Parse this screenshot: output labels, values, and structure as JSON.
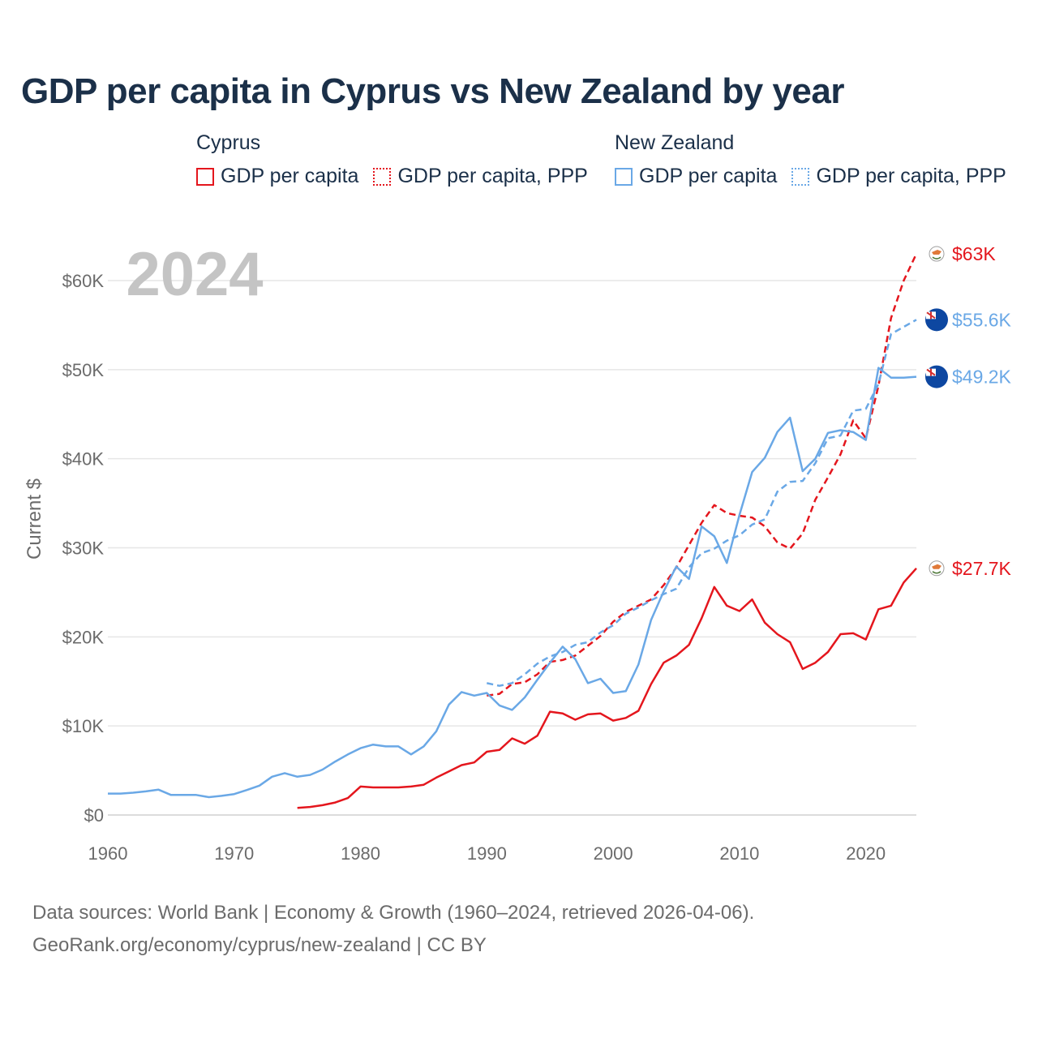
{
  "title": "GDP per capita in Cyprus vs New Zealand by year",
  "legend": {
    "groups": [
      {
        "name": "Cyprus",
        "items": [
          "GDP per capita",
          "GDP per capita, PPP"
        ]
      },
      {
        "name": "New Zealand",
        "items": [
          "GDP per capita",
          "GDP per capita, PPP"
        ]
      }
    ]
  },
  "year_watermark": "2024",
  "footer": {
    "line1": "Data sources: World Bank | Economy & Growth (1960–2024, retrieved 2026-04-06).",
    "line2": "GeoRank.org/economy/cyprus/new-zealand | CC BY"
  },
  "colors": {
    "cyprus": "#e4161d",
    "new_zealand": "#6aa8e6",
    "grid": "#e6e6e6",
    "text": "#1b3049",
    "muted": "#6b6b6b"
  },
  "chart_data": {
    "type": "line",
    "title": "GDP per capita in Cyprus vs New Zealand by year",
    "xlabel": "",
    "ylabel": "Current $",
    "xlim": [
      1960,
      2024
    ],
    "ylim": [
      0,
      63000
    ],
    "x_ticks": [
      1960,
      1970,
      1980,
      1990,
      2000,
      2010,
      2020
    ],
    "x_tick_labels": [
      "1960",
      "1970",
      "1980",
      "1990",
      "2000",
      "2010",
      "2020"
    ],
    "y_ticks": [
      0,
      10000,
      20000,
      30000,
      40000,
      50000,
      60000
    ],
    "y_tick_labels": [
      "$0",
      "$10K",
      "$20K",
      "$30K",
      "$40K",
      "$50K",
      "$60K"
    ],
    "grid": true,
    "series": [
      {
        "name": "Cyprus GDP per capita",
        "country": "cyprus",
        "style": "solid",
        "end_label": "$27.7K",
        "x": [
          1975,
          1976,
          1977,
          1978,
          1979,
          1980,
          1981,
          1982,
          1983,
          1984,
          1985,
          1986,
          1987,
          1988,
          1989,
          1990,
          1991,
          1992,
          1993,
          1994,
          1995,
          1996,
          1997,
          1998,
          1999,
          2000,
          2001,
          2002,
          2003,
          2004,
          2005,
          2006,
          2007,
          2008,
          2009,
          2010,
          2011,
          2012,
          2013,
          2014,
          2015,
          2016,
          2017,
          2018,
          2019,
          2020,
          2021,
          2022,
          2023,
          2024
        ],
        "values": [
          800,
          900,
          1100,
          1400,
          1900,
          3200,
          3100,
          3100,
          3100,
          3200,
          3400,
          4200,
          4900,
          5600,
          5900,
          7100,
          7300,
          8600,
          8000,
          8900,
          11600,
          11400,
          10700,
          11300,
          11400,
          10600,
          10900,
          11700,
          14700,
          17100,
          17900,
          19100,
          22100,
          25600,
          23500,
          22900,
          24200,
          21600,
          20300,
          19400,
          16400,
          17100,
          18300,
          20300,
          20400,
          19700,
          23100,
          23500,
          26100,
          27700
        ]
      },
      {
        "name": "Cyprus GDP per capita, PPP",
        "country": "cyprus",
        "style": "dashed",
        "end_label": "$63K",
        "x": [
          1990,
          1991,
          1992,
          1993,
          1994,
          1995,
          1996,
          1997,
          1998,
          1999,
          2000,
          2001,
          2002,
          2003,
          2004,
          2005,
          2006,
          2007,
          2008,
          2009,
          2010,
          2011,
          2012,
          2013,
          2014,
          2015,
          2016,
          2017,
          2018,
          2019,
          2020,
          2021,
          2022,
          2023,
          2024
        ],
        "values": [
          13400,
          13600,
          14700,
          14900,
          15800,
          17200,
          17400,
          17900,
          19000,
          20100,
          21700,
          22800,
          23500,
          24200,
          25800,
          27800,
          30300,
          32800,
          34800,
          33900,
          33600,
          33400,
          32400,
          30600,
          29900,
          31600,
          35400,
          37900,
          40500,
          44300,
          42300,
          48200,
          55800,
          60000,
          63000
        ]
      },
      {
        "name": "New Zealand GDP per capita",
        "country": "new_zealand",
        "style": "solid",
        "end_label": "$49.2K",
        "x": [
          1960,
          1961,
          1962,
          1963,
          1964,
          1965,
          1966,
          1967,
          1968,
          1969,
          1970,
          1971,
          1972,
          1973,
          1974,
          1975,
          1976,
          1977,
          1978,
          1979,
          1980,
          1981,
          1982,
          1983,
          1984,
          1985,
          1986,
          1987,
          1988,
          1989,
          1990,
          1991,
          1992,
          1993,
          1994,
          1995,
          1996,
          1997,
          1998,
          1999,
          2000,
          2001,
          2002,
          2003,
          2004,
          2005,
          2006,
          2007,
          2008,
          2009,
          2010,
          2011,
          2012,
          2013,
          2014,
          2015,
          2016,
          2017,
          2018,
          2019,
          2020,
          2021,
          2022,
          2023,
          2024
        ],
        "values": [
          2400,
          2400,
          2500,
          2650,
          2850,
          2250,
          2250,
          2250,
          2000,
          2150,
          2350,
          2800,
          3300,
          4300,
          4700,
          4300,
          4500,
          5100,
          6000,
          6800,
          7500,
          7900,
          7700,
          7700,
          6800,
          7700,
          9400,
          12400,
          13800,
          13400,
          13700,
          12300,
          11800,
          13200,
          15200,
          17100,
          18900,
          17500,
          14800,
          15300,
          13700,
          13900,
          16900,
          21900,
          25100,
          27900,
          26500,
          32400,
          31300,
          28300,
          33700,
          38500,
          40100,
          43000,
          44600,
          38600,
          40000,
          42900,
          43200,
          43000,
          42100,
          50200,
          49100,
          49100,
          49200
        ]
      },
      {
        "name": "New Zealand GDP per capita, PPP",
        "country": "new_zealand",
        "style": "dashed",
        "end_label": "$55.6K",
        "x": [
          1990,
          1991,
          1992,
          1993,
          1994,
          1995,
          1996,
          1997,
          1998,
          1999,
          2000,
          2001,
          2002,
          2003,
          2004,
          2005,
          2006,
          2007,
          2008,
          2009,
          2010,
          2011,
          2012,
          2013,
          2014,
          2015,
          2016,
          2017,
          2018,
          2019,
          2020,
          2021,
          2022,
          2023,
          2024
        ],
        "values": [
          14800,
          14500,
          14800,
          15800,
          17000,
          17800,
          18300,
          19100,
          19400,
          20500,
          21300,
          22600,
          23300,
          24100,
          24800,
          25400,
          27800,
          29400,
          29900,
          30800,
          31400,
          32600,
          33200,
          36300,
          37400,
          37500,
          39500,
          42300,
          42600,
          45400,
          45600,
          48400,
          54000,
          54800,
          55600
        ]
      }
    ]
  }
}
